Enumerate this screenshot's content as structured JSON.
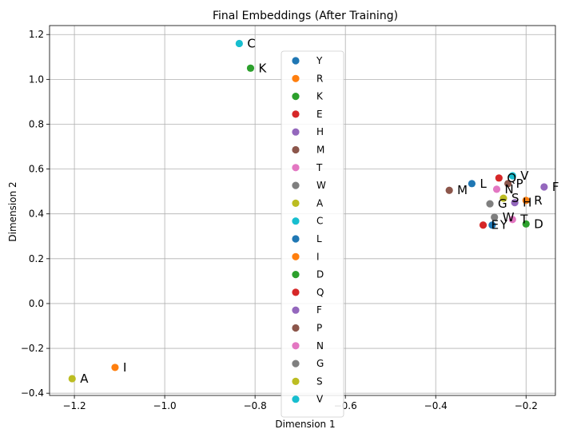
{
  "chart_data": {
    "type": "scatter",
    "title": "Final Embeddings (After Training)",
    "xlabel": "Dimension 1",
    "ylabel": "Dimension 2",
    "xlim": [
      -1.255,
      -0.135
    ],
    "ylim": [
      -0.41,
      1.24
    ],
    "xticks": [
      "−1.2",
      "−1.0",
      "−0.8",
      "−0.6",
      "−0.4",
      "−0.2"
    ],
    "xtick_values": [
      -1.2,
      -1.0,
      -0.8,
      -0.6,
      -0.4,
      -0.2
    ],
    "yticks": [
      "−0.4",
      "−0.2",
      "0.0",
      "0.2",
      "0.4",
      "0.6",
      "0.8",
      "1.0",
      "1.2"
    ],
    "ytick_values": [
      -0.4,
      -0.2,
      0.0,
      0.2,
      0.4,
      0.6,
      0.8,
      1.0,
      1.2
    ],
    "grid": true,
    "legend_placement": "upper-center",
    "series": [
      {
        "name": "Y",
        "color": "#1f77b4",
        "x": -0.275,
        "y": 0.35
      },
      {
        "name": "R",
        "color": "#ff7f0e",
        "x": -0.2,
        "y": 0.46
      },
      {
        "name": "K",
        "color": "#2ca02c",
        "x": -0.81,
        "y": 1.05
      },
      {
        "name": "E",
        "color": "#d62728",
        "x": -0.295,
        "y": 0.35
      },
      {
        "name": "H",
        "color": "#9467bd",
        "x": -0.225,
        "y": 0.45
      },
      {
        "name": "M",
        "color": "#8c564b",
        "x": -0.37,
        "y": 0.505
      },
      {
        "name": "T",
        "color": "#e377c2",
        "x": -0.23,
        "y": 0.375
      },
      {
        "name": "W",
        "color": "#7f7f7f",
        "x": -0.27,
        "y": 0.385
      },
      {
        "name": "A",
        "color": "#bcbd22",
        "x": -1.205,
        "y": -0.335
      },
      {
        "name": "C",
        "color": "#17becf",
        "x": -0.835,
        "y": 1.16
      },
      {
        "name": "L",
        "color": "#1f77b4",
        "x": -0.32,
        "y": 0.535
      },
      {
        "name": "I",
        "color": "#ff7f0e",
        "x": -1.11,
        "y": -0.285
      },
      {
        "name": "D",
        "color": "#2ca02c",
        "x": -0.2,
        "y": 0.355
      },
      {
        "name": "Q",
        "color": "#d62728",
        "x": -0.26,
        "y": 0.56
      },
      {
        "name": "F",
        "color": "#9467bd",
        "x": -0.16,
        "y": 0.52
      },
      {
        "name": "P",
        "color": "#8c564b",
        "x": -0.24,
        "y": 0.535
      },
      {
        "name": "N",
        "color": "#e377c2",
        "x": -0.265,
        "y": 0.51
      },
      {
        "name": "G",
        "color": "#7f7f7f",
        "x": -0.28,
        "y": 0.445
      },
      {
        "name": "S",
        "color": "#bcbd22",
        "x": -0.25,
        "y": 0.47
      },
      {
        "name": "V",
        "color": "#17becf",
        "x": -0.23,
        "y": 0.57
      }
    ]
  }
}
